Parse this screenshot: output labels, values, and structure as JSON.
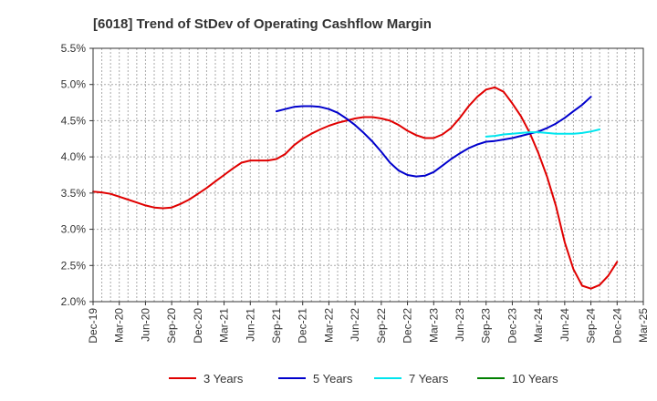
{
  "chart_data": {
    "type": "line",
    "title": "[6018]  Trend of StDev of Operating Cashflow Margin",
    "xlabel": "",
    "ylabel": "",
    "grid": true,
    "legend_position": "bottom",
    "x_ticks": [
      "Dec-19",
      "Mar-20",
      "Jun-20",
      "Sep-20",
      "Dec-20",
      "Mar-21",
      "Jun-21",
      "Sep-21",
      "Dec-21",
      "Mar-22",
      "Jun-22",
      "Sep-22",
      "Dec-22",
      "Mar-23",
      "Jun-23",
      "Sep-23",
      "Dec-23",
      "Mar-24",
      "Jun-24",
      "Sep-24",
      "Dec-24",
      "Mar-25"
    ],
    "y_ticks": [
      "2.0%",
      "2.5%",
      "3.0%",
      "3.5%",
      "4.0%",
      "4.5%",
      "5.0%",
      "5.5%"
    ],
    "ylim": [
      2.0,
      5.5
    ],
    "series": [
      {
        "name": "3 Years",
        "color": "#e00000",
        "start": "Dec-19",
        "values": [
          3.52,
          3.51,
          3.49,
          3.45,
          3.41,
          3.37,
          3.33,
          3.3,
          3.29,
          3.3,
          3.35,
          3.41,
          3.49,
          3.57,
          3.66,
          3.75,
          3.84,
          3.92,
          3.95,
          3.95,
          3.95,
          3.97,
          4.04,
          4.16,
          4.25,
          4.32,
          4.38,
          4.43,
          4.47,
          4.5,
          4.53,
          4.55,
          4.55,
          4.53,
          4.5,
          4.44,
          4.36,
          4.3,
          4.26,
          4.26,
          4.31,
          4.4,
          4.54,
          4.7,
          4.83,
          4.93,
          4.96,
          4.9,
          4.74,
          4.56,
          4.33,
          4.05,
          3.72,
          3.32,
          2.82,
          2.45,
          2.22,
          2.18,
          2.23,
          2.36,
          2.55
        ]
      },
      {
        "name": "5 Years",
        "color": "#0000cc",
        "start": "Sep-21",
        "values": [
          4.63,
          4.66,
          4.69,
          4.7,
          4.7,
          4.69,
          4.66,
          4.61,
          4.53,
          4.44,
          4.33,
          4.21,
          4.07,
          3.92,
          3.81,
          3.75,
          3.73,
          3.74,
          3.79,
          3.88,
          3.97,
          4.05,
          4.12,
          4.17,
          4.21,
          4.22,
          4.24,
          4.26,
          4.29,
          4.32,
          4.35,
          4.4,
          4.46,
          4.54,
          4.63,
          4.72,
          4.83
        ]
      },
      {
        "name": "7 Years",
        "color": "#00e5ee",
        "start": "Sep-23",
        "values": [
          4.28,
          4.29,
          4.31,
          4.32,
          4.33,
          4.34,
          4.34,
          4.33,
          4.32,
          4.32,
          4.32,
          4.33,
          4.35,
          4.38
        ]
      },
      {
        "name": "10 Years",
        "color": "#008000",
        "start": "Sep-23",
        "values": []
      }
    ]
  }
}
